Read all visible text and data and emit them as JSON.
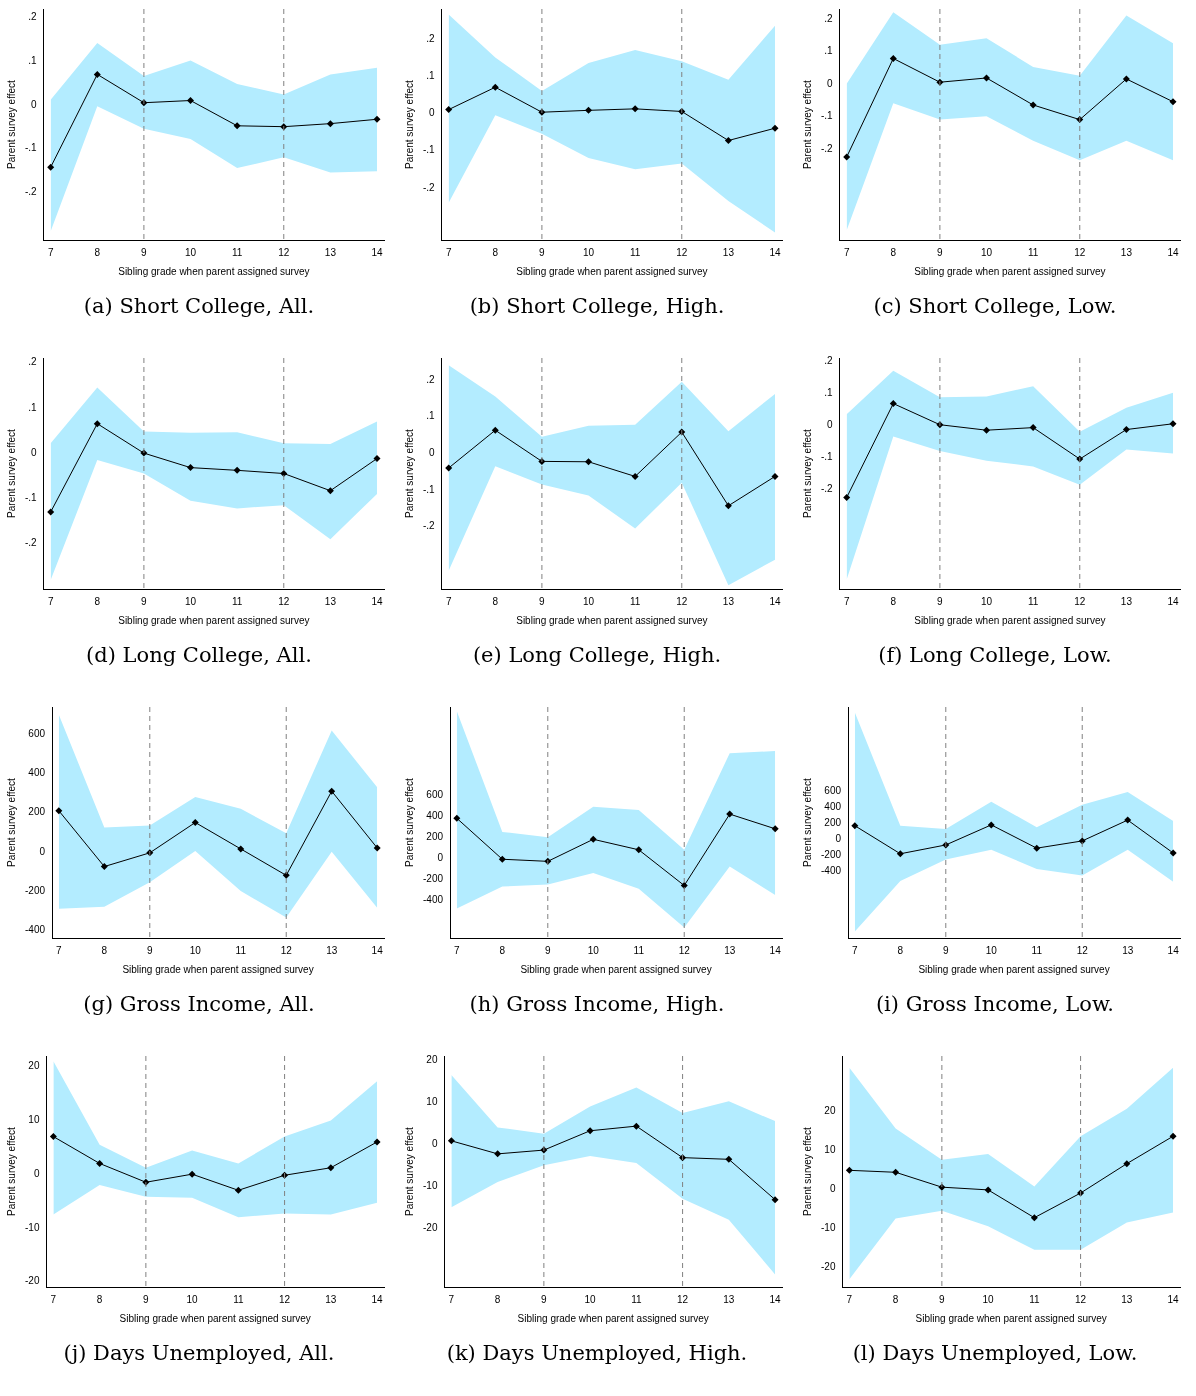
{
  "chart_data": [
    {
      "type": "line",
      "title": "(a) Short College, All.",
      "xlabel": "Sibling grade when parent assigned survey",
      "ylabel": "Parent survey effect",
      "x": [
        7,
        8,
        9,
        10,
        11,
        12,
        13,
        14
      ],
      "xlim": [
        6.85,
        14.15
      ],
      "xticks": [
        7,
        8,
        9,
        10,
        11,
        12,
        13,
        14
      ],
      "ylim": [
        -0.31,
        0.22
      ],
      "yticks": [
        {
          "value": 0.2,
          "label": ".2"
        },
        {
          "value": 0.1,
          "label": ".1"
        },
        0,
        {
          "value": -0.1,
          "label": "-.1"
        },
        {
          "value": -0.2,
          "label": "-.2"
        }
      ],
      "grid": false,
      "legend": false,
      "marker": "diamond",
      "line_style": "solid",
      "ref_lines": [
        {
          "axis": "x",
          "value": 9,
          "color": "#808080",
          "line_style": "dashed"
        },
        {
          "axis": "x",
          "value": 12,
          "color": "#808080",
          "line_style": "dashed"
        }
      ],
      "series": [
        {
          "color": "#000000",
          "values": [
            -0.143,
            0.07,
            0.005,
            0.01,
            -0.048,
            -0.05,
            -0.043,
            -0.033
          ],
          "upper": [
            0.012,
            0.142,
            0.066,
            0.102,
            0.048,
            0.024,
            0.07,
            0.085
          ],
          "lower": [
            -0.29,
            -0.003,
            -0.055,
            -0.078,
            -0.145,
            -0.12,
            -0.155,
            -0.152
          ]
        }
      ]
    },
    {
      "type": "line",
      "title": "(b) Short College, High.",
      "xlabel": "Sibling grade when parent assigned survey",
      "ylabel": "Parent survey effect",
      "x": [
        7,
        8,
        9,
        10,
        11,
        12,
        13,
        14
      ],
      "xlim": [
        6.85,
        14.15
      ],
      "xticks": [
        7,
        8,
        9,
        10,
        11,
        12,
        13,
        14
      ],
      "ylim": [
        -0.34,
        0.28
      ],
      "yticks": [
        {
          "value": 0.2,
          "label": ".2"
        },
        {
          "value": 0.1,
          "label": ".1"
        },
        0,
        {
          "value": -0.1,
          "label": "-.1"
        },
        {
          "value": -0.2,
          "label": "-.2"
        }
      ],
      "grid": false,
      "legend": false,
      "marker": "diamond",
      "line_style": "solid",
      "ref_lines": [
        {
          "axis": "x",
          "value": 9,
          "color": "#808080",
          "line_style": "dashed"
        },
        {
          "axis": "x",
          "value": 12,
          "color": "#808080",
          "line_style": "dashed"
        }
      ],
      "series": [
        {
          "color": "#000000",
          "values": [
            0.01,
            0.07,
            0.003,
            0.008,
            0.012,
            0.005,
            -0.073,
            -0.04
          ],
          "upper": [
            0.265,
            0.15,
            0.06,
            0.135,
            0.17,
            0.14,
            0.09,
            0.235
          ],
          "lower": [
            -0.24,
            -0.005,
            -0.055,
            -0.12,
            -0.15,
            -0.135,
            -0.235,
            -0.32
          ]
        }
      ]
    },
    {
      "type": "line",
      "title": "(c) Short College, Low.",
      "xlabel": "Sibling grade when parent assigned survey",
      "ylabel": "Parent survey effect",
      "x": [
        7,
        8,
        9,
        10,
        11,
        12,
        13,
        14
      ],
      "xlim": [
        6.85,
        14.15
      ],
      "xticks": [
        7,
        8,
        9,
        10,
        11,
        12,
        13,
        14
      ],
      "ylim": [
        -0.48,
        0.23
      ],
      "yticks": [
        {
          "value": 0.2,
          "label": ".2"
        },
        {
          "value": 0.1,
          "label": ".1"
        },
        0,
        {
          "value": -0.1,
          "label": "-.1"
        },
        {
          "value": -0.2,
          "label": "-.2"
        }
      ],
      "grid": false,
      "legend": false,
      "marker": "diamond",
      "line_style": "solid",
      "ref_lines": [
        {
          "axis": "x",
          "value": 9,
          "color": "#808080",
          "line_style": "dashed"
        },
        {
          "axis": "x",
          "value": 12,
          "color": "#808080",
          "line_style": "dashed"
        }
      ],
      "series": [
        {
          "color": "#000000",
          "values": [
            -0.225,
            0.078,
            0.005,
            0.018,
            -0.065,
            -0.11,
            0.015,
            -0.055
          ],
          "upper": [
            0.0,
            0.22,
            0.12,
            0.14,
            0.052,
            0.025,
            0.21,
            0.125
          ],
          "lower": [
            -0.45,
            -0.06,
            -0.11,
            -0.1,
            -0.175,
            -0.235,
            -0.175,
            -0.235
          ]
        }
      ]
    },
    {
      "type": "line",
      "title": "(d) Long College, All.",
      "xlabel": "Sibling grade when parent assigned survey",
      "ylabel": "Parent survey effect",
      "x": [
        7,
        8,
        9,
        10,
        11,
        12,
        13,
        14
      ],
      "xlim": [
        6.85,
        14.15
      ],
      "xticks": [
        7,
        8,
        9,
        10,
        11,
        12,
        13,
        14
      ],
      "ylim": [
        -0.3,
        0.21
      ],
      "yticks": [
        {
          "value": 0.2,
          "label": ".2"
        },
        {
          "value": 0.1,
          "label": ".1"
        },
        0,
        {
          "value": -0.1,
          "label": "-.1"
        },
        {
          "value": -0.2,
          "label": "-.2"
        }
      ],
      "grid": false,
      "legend": false,
      "marker": "diamond",
      "line_style": "solid",
      "ref_lines": [
        {
          "axis": "x",
          "value": 9,
          "color": "#808080",
          "line_style": "dashed"
        },
        {
          "axis": "x",
          "value": 12,
          "color": "#808080",
          "line_style": "dashed"
        }
      ],
      "series": [
        {
          "color": "#000000",
          "values": [
            -0.13,
            0.065,
            0.0,
            -0.032,
            -0.038,
            -0.045,
            -0.083,
            -0.012
          ],
          "upper": [
            0.022,
            0.145,
            0.048,
            0.045,
            0.046,
            0.022,
            0.02,
            0.07
          ],
          "lower": [
            -0.28,
            -0.015,
            -0.045,
            -0.105,
            -0.122,
            -0.115,
            -0.19,
            -0.09
          ]
        }
      ]
    },
    {
      "type": "line",
      "title": "(e) Long College, High.",
      "xlabel": "Sibling grade when parent assigned survey",
      "ylabel": "Parent survey effect",
      "x": [
        7,
        8,
        9,
        10,
        11,
        12,
        13,
        14
      ],
      "xlim": [
        6.85,
        14.15
      ],
      "xticks": [
        7,
        8,
        9,
        10,
        11,
        12,
        13,
        14
      ],
      "ylim": [
        -0.37,
        0.26
      ],
      "yticks": [
        {
          "value": 0.2,
          "label": ".2"
        },
        {
          "value": 0.1,
          "label": ".1"
        },
        0,
        {
          "value": -0.1,
          "label": "-.1"
        },
        {
          "value": -0.2,
          "label": "-.2"
        }
      ],
      "grid": false,
      "legend": false,
      "marker": "diamond",
      "line_style": "solid",
      "ref_lines": [
        {
          "axis": "x",
          "value": 9,
          "color": "#808080",
          "line_style": "dashed"
        },
        {
          "axis": "x",
          "value": 12,
          "color": "#808080",
          "line_style": "dashed"
        }
      ],
      "series": [
        {
          "color": "#000000",
          "values": [
            -0.04,
            0.063,
            -0.022,
            -0.023,
            -0.063,
            0.058,
            -0.143,
            -0.063
          ],
          "upper": [
            0.24,
            0.155,
            0.045,
            0.075,
            0.078,
            0.195,
            0.06,
            0.162
          ],
          "lower": [
            -0.32,
            -0.035,
            -0.085,
            -0.115,
            -0.205,
            -0.08,
            -0.36,
            -0.29
          ]
        }
      ]
    },
    {
      "type": "line",
      "title": "(f) Long College, Low.",
      "xlabel": "Sibling grade when parent assigned survey",
      "ylabel": "Parent survey effect",
      "x": [
        7,
        8,
        9,
        10,
        11,
        12,
        13,
        14
      ],
      "xlim": [
        6.85,
        14.15
      ],
      "xticks": [
        7,
        8,
        9,
        10,
        11,
        12,
        13,
        14
      ],
      "ylim": [
        -0.51,
        0.21
      ],
      "yticks": [
        {
          "value": 0.2,
          "label": ".2"
        },
        {
          "value": 0.1,
          "label": ".1"
        },
        0,
        {
          "value": -0.1,
          "label": "-.1"
        },
        {
          "value": -0.2,
          "label": "-.2"
        }
      ],
      "grid": false,
      "legend": false,
      "marker": "diamond",
      "line_style": "solid",
      "ref_lines": [
        {
          "axis": "x",
          "value": 9,
          "color": "#808080",
          "line_style": "dashed"
        },
        {
          "axis": "x",
          "value": 12,
          "color": "#808080",
          "line_style": "dashed"
        }
      ],
      "series": [
        {
          "color": "#000000",
          "values": [
            -0.225,
            0.068,
            0.002,
            -0.015,
            -0.007,
            -0.105,
            -0.013,
            0.005
          ],
          "upper": [
            0.035,
            0.17,
            0.088,
            0.09,
            0.122,
            -0.02,
            0.055,
            0.102
          ],
          "lower": [
            -0.48,
            -0.035,
            -0.08,
            -0.11,
            -0.128,
            -0.185,
            -0.075,
            -0.088
          ]
        }
      ]
    },
    {
      "type": "line",
      "title": "(g) Gross Income, All.",
      "xlabel": "Sibling grade when parent assigned survey",
      "ylabel": "Parent survey effect",
      "x": [
        7,
        8,
        9,
        10,
        11,
        12,
        13,
        14
      ],
      "xlim": [
        6.85,
        14.15
      ],
      "xticks": [
        7,
        8,
        9,
        10,
        11,
        12,
        13,
        14
      ],
      "ylim": [
        -440,
        740
      ],
      "yticks": [
        -400,
        -200,
        0,
        200,
        400,
        600
      ],
      "grid": false,
      "legend": false,
      "marker": "diamond",
      "line_style": "solid",
      "ref_lines": [
        {
          "axis": "x",
          "value": 9,
          "color": "#808080",
          "line_style": "dashed"
        },
        {
          "axis": "x",
          "value": 12,
          "color": "#808080",
          "line_style": "dashed"
        }
      ],
      "series": [
        {
          "color": "#000000",
          "values": [
            210,
            -75,
            -5,
            150,
            15,
            -120,
            310,
            20
          ],
          "upper": [
            700,
            125,
            135,
            280,
            220,
            95,
            620,
            330
          ],
          "lower": [
            -290,
            -280,
            -155,
            5,
            -200,
            -335,
            0,
            -285
          ]
        }
      ]
    },
    {
      "type": "line",
      "title": "(h) Gross Income, High.",
      "xlabel": "Sibling grade when parent assigned survey",
      "ylabel": "Parent survey effect",
      "x": [
        7,
        8,
        9,
        10,
        11,
        12,
        13,
        14
      ],
      "xlim": [
        6.85,
        14.15
      ],
      "xticks": [
        7,
        8,
        9,
        10,
        11,
        12,
        13,
        14
      ],
      "ylim": [
        -760,
        1440
      ],
      "yticks": [
        -400,
        -200,
        0,
        200,
        400,
        600
      ],
      "grid": false,
      "legend": false,
      "marker": "diamond",
      "line_style": "solid",
      "ref_lines": [
        {
          "axis": "x",
          "value": 9,
          "color": "#808080",
          "line_style": "dashed"
        },
        {
          "axis": "x",
          "value": 12,
          "color": "#808080",
          "line_style": "dashed"
        }
      ],
      "series": [
        {
          "color": "#000000",
          "values": [
            380,
            -10,
            -30,
            180,
            80,
            -260,
            420,
            280
          ],
          "upper": [
            1400,
            250,
            200,
            490,
            460,
            80,
            1000,
            1020
          ],
          "lower": [
            -480,
            -270,
            -250,
            -140,
            -290,
            -660,
            -80,
            -350
          ]
        }
      ]
    },
    {
      "type": "line",
      "title": "(i) Gross Income, Low.",
      "xlabel": "Sibling grade when parent assigned survey",
      "ylabel": "Parent survey effect",
      "x": [
        7,
        8,
        9,
        10,
        11,
        12,
        13,
        14
      ],
      "xlim": [
        6.85,
        14.15
      ],
      "xticks": [
        7,
        8,
        9,
        10,
        11,
        12,
        13,
        14
      ],
      "ylim": [
        -1230,
        1650
      ],
      "yticks": [
        -400,
        -200,
        0,
        200,
        400,
        600
      ],
      "grid": false,
      "legend": false,
      "marker": "diamond",
      "line_style": "solid",
      "ref_lines": [
        {
          "axis": "x",
          "value": 9,
          "color": "#808080",
          "line_style": "dashed"
        },
        {
          "axis": "x",
          "value": 12,
          "color": "#808080",
          "line_style": "dashed"
        }
      ],
      "series": [
        {
          "color": "#000000",
          "values": [
            170,
            -180,
            -70,
            180,
            -110,
            -20,
            240,
            -170
          ],
          "upper": [
            1580,
            170,
            130,
            470,
            150,
            430,
            590,
            230
          ],
          "lower": [
            -1150,
            -520,
            -250,
            -130,
            -370,
            -450,
            -130,
            -530
          ]
        }
      ]
    },
    {
      "type": "line",
      "title": "(j) Days Unemployed, All.",
      "xlabel": "Sibling grade when parent assigned survey",
      "ylabel": "Parent survey effect",
      "x": [
        7,
        8,
        9,
        10,
        11,
        12,
        13,
        14
      ],
      "xlim": [
        6.85,
        14.15
      ],
      "xticks": [
        7,
        8,
        9,
        10,
        11,
        12,
        13,
        14
      ],
      "ylim": [
        -21,
        22
      ],
      "yticks": [
        -20,
        -10,
        0,
        10,
        20
      ],
      "grid": false,
      "legend": false,
      "marker": "diamond",
      "line_style": "solid",
      "ref_lines": [
        {
          "axis": "x",
          "value": 9,
          "color": "#808080",
          "line_style": "dashed"
        },
        {
          "axis": "x",
          "value": 12,
          "color": "#808080",
          "line_style": "dashed"
        }
      ],
      "series": [
        {
          "color": "#000000",
          "values": [
            7,
            2,
            -1.5,
            0,
            -3,
            -0.2,
            1.2,
            6
          ],
          "upper": [
            21,
            5.5,
            1.2,
            4.4,
            2,
            7,
            10,
            17.3
          ],
          "lower": [
            -7.5,
            -2,
            -4.2,
            -4.4,
            -8,
            -7.3,
            -7.5,
            -5.3
          ]
        }
      ]
    },
    {
      "type": "line",
      "title": "(k) Days Unemployed, High.",
      "xlabel": "Sibling grade when parent assigned survey",
      "ylabel": "Parent survey effect",
      "x": [
        7,
        8,
        9,
        10,
        11,
        12,
        13,
        14
      ],
      "xlim": [
        6.85,
        14.15
      ],
      "xticks": [
        7,
        8,
        9,
        10,
        11,
        12,
        13,
        14
      ],
      "ylim": [
        -34,
        21
      ],
      "yticks": [
        -20,
        -10,
        0,
        10,
        20
      ],
      "grid": false,
      "legend": false,
      "marker": "diamond",
      "line_style": "solid",
      "ref_lines": [
        {
          "axis": "x",
          "value": 9,
          "color": "#808080",
          "line_style": "dashed"
        },
        {
          "axis": "x",
          "value": 12,
          "color": "#808080",
          "line_style": "dashed"
        }
      ],
      "series": [
        {
          "color": "#000000",
          "values": [
            0.8,
            -2.3,
            -1.4,
            3.2,
            4.3,
            -3.2,
            -3.6,
            -13.2
          ],
          "upper": [
            16.5,
            4,
            2.5,
            9,
            13.5,
            7.4,
            10.2,
            5.5
          ],
          "lower": [
            -15,
            -9,
            -5,
            -2.8,
            -4.5,
            -13,
            -18,
            -31
          ]
        }
      ]
    },
    {
      "type": "line",
      "title": "(l) Days Unemployed, Low.",
      "xlabel": "Sibling grade when parent assigned survey",
      "ylabel": "Parent survey effect",
      "x": [
        7,
        8,
        9,
        10,
        11,
        12,
        13,
        14
      ],
      "xlim": [
        6.85,
        14.15
      ],
      "xticks": [
        7,
        8,
        9,
        10,
        11,
        12,
        13,
        14
      ],
      "ylim": [
        -25,
        34
      ],
      "yticks": [
        -20,
        -10,
        0,
        10,
        20
      ],
      "grid": false,
      "legend": false,
      "marker": "diamond",
      "line_style": "solid",
      "ref_lines": [
        {
          "axis": "x",
          "value": 9,
          "color": "#808080",
          "line_style": "dashed"
        },
        {
          "axis": "x",
          "value": 12,
          "color": "#808080",
          "line_style": "dashed"
        }
      ],
      "series": [
        {
          "color": "#000000",
          "values": [
            4.8,
            4.3,
            0.5,
            -0.2,
            -7.3,
            -1,
            6.5,
            13.5
          ],
          "upper": [
            31,
            15.5,
            7.5,
            9,
            0.7,
            13.5,
            20.5,
            31
          ],
          "lower": [
            -23,
            -7.5,
            -5.5,
            -9.5,
            -15.5,
            -15.5,
            -8.5,
            -6
          ]
        }
      ]
    }
  ]
}
